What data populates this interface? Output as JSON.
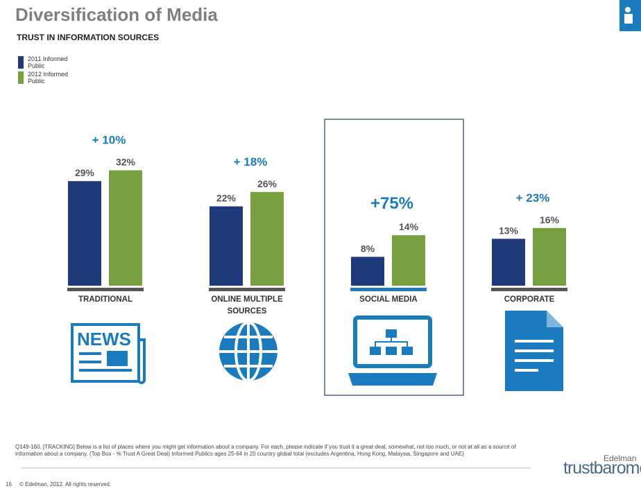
{
  "header": {
    "title": "Diversification of Media",
    "subtitle": "TRUST IN INFORMATION SOURCES"
  },
  "chart_data": {
    "type": "bar",
    "categories": [
      "TRADITIONAL",
      "ONLINE MULTIPLE SOURCES",
      "SOCIAL MEDIA",
      "CORPORATE"
    ],
    "series": [
      {
        "name": "2011 Informed Public",
        "color": "#1f3a7a",
        "values": [
          29,
          22,
          8,
          13
        ],
        "value_labels": [
          "29%",
          "22%",
          "8%",
          "13%"
        ]
      },
      {
        "name": "2012 Informed Public",
        "color": "#78a040",
        "values": [
          32,
          26,
          14,
          16
        ],
        "value_labels": [
          "32%",
          "26%",
          "14%",
          "16%"
        ]
      }
    ],
    "change_labels": [
      "+ 10%",
      "+ 18%",
      "+75%",
      "+ 23%"
    ],
    "highlight_color": "#1a7bbf"
  },
  "icons": {
    "news": "NEWS"
  },
  "footer": {
    "footnote": "Q149-160. [TRACKING] Below is a list of places where you might get information about a company.  For each, please indicate if you trust it a great deal, somewhat, not too much, or not at all as a source of information about a company. (Top Box - % Trust A Great Deal) Informed Publics ages 25-64 in 20 country global total (excludes Argentina, Hong Kong, Malaysia, Singapore and UAE)",
    "page": "16",
    "copyright": "© Edelman, 2012. All rights reserved.",
    "logo_top": "Edelman",
    "logo": "trustbarometer"
  }
}
